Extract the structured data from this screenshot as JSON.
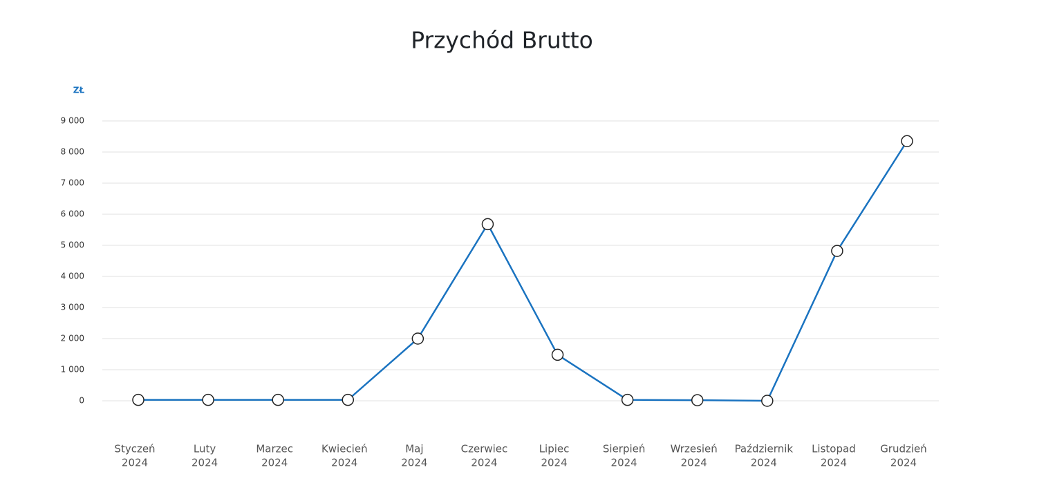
{
  "chart_data": {
    "type": "line",
    "title": "Przychód Brutto",
    "y_unit": "ZŁ",
    "categories": [
      [
        "Styczeń",
        "2024"
      ],
      [
        "Luty",
        "2024"
      ],
      [
        "Marzec",
        "2024"
      ],
      [
        "Kwiecień",
        "2024"
      ],
      [
        "Maj",
        "2024"
      ],
      [
        "Czerwiec",
        "2024"
      ],
      [
        "Lipiec",
        "2024"
      ],
      [
        "Sierpień",
        "2024"
      ],
      [
        "Wrzesień",
        "2024"
      ],
      [
        "Październik",
        "2024"
      ],
      [
        "Listopad",
        "2024"
      ],
      [
        "Grudzień",
        "2024"
      ]
    ],
    "series": [
      {
        "name": "Przychód Brutto",
        "color": "#1a73c0",
        "values": [
          30,
          30,
          30,
          30,
          2000,
          5680,
          1480,
          30,
          20,
          0,
          4820,
          8350
        ]
      }
    ],
    "ylim": [
      0,
      9000
    ],
    "yticks": [
      {
        "value": 0,
        "label": "0"
      },
      {
        "value": 1000,
        "label": "1 000"
      },
      {
        "value": 2000,
        "label": "2 000"
      },
      {
        "value": 3000,
        "label": "3 000"
      },
      {
        "value": 4000,
        "label": "4 000"
      },
      {
        "value": 5000,
        "label": "5 000"
      },
      {
        "value": 6000,
        "label": "6 000"
      },
      {
        "value": 7000,
        "label": "7 000"
      },
      {
        "value": 8000,
        "label": "8 000"
      },
      {
        "value": 9000,
        "label": "9 000"
      }
    ],
    "grid": true
  }
}
